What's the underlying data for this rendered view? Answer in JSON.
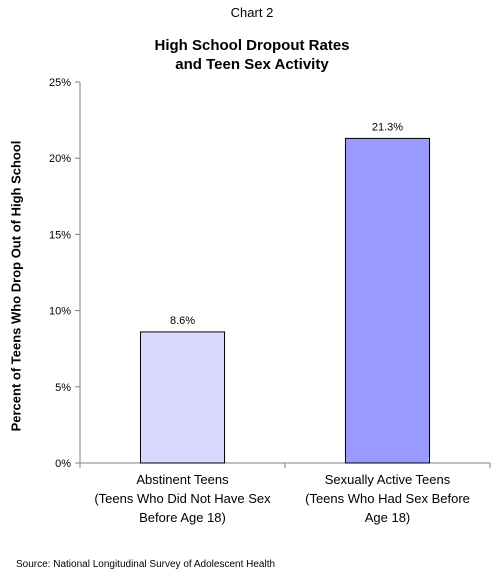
{
  "header": {
    "chart_label": "Chart 2",
    "title_line1": "High School Dropout Rates",
    "title_line2": "and Teen Sex Activity"
  },
  "footer": {
    "source": "Source:  National Longitudinal Survey of Adolescent Health"
  },
  "colors": {
    "bar_1": "#d9d9ff",
    "bar_2": "#9999ff",
    "axis": "#808080",
    "bar_border": "#000000"
  },
  "chart_data": {
    "type": "bar",
    "title": "High School Dropout Rates and Teen Sex Activity",
    "ylabel": "Percent of Teens Who Drop Out of High School",
    "xlabel": "",
    "ylim": [
      0,
      25
    ],
    "y_ticks": [
      "0%",
      "5%",
      "10%",
      "15%",
      "20%",
      "25%"
    ],
    "grid": false,
    "categories": [
      [
        "Abstinent Teens",
        "(Teens Who Did Not Have Sex",
        "Before Age 18)"
      ],
      [
        "Sexually Active Teens",
        "(Teens Who Had Sex Before",
        "Age 18)"
      ]
    ],
    "values": [
      8.6,
      21.3
    ],
    "value_labels": [
      "8.6%",
      "21.3%"
    ]
  }
}
